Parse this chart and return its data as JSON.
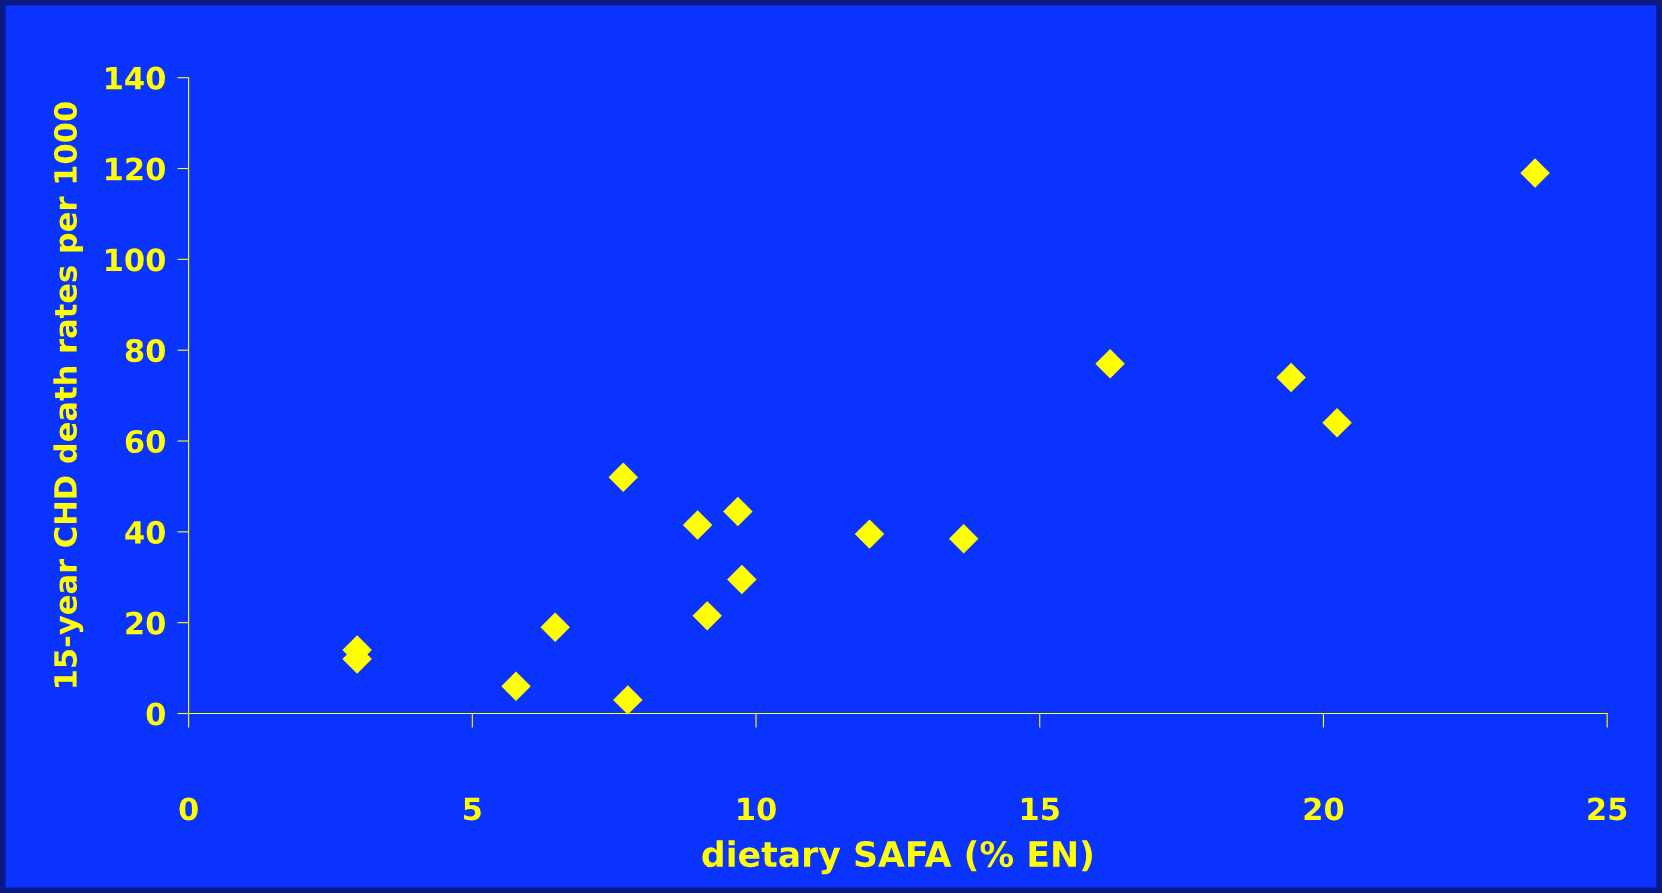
{
  "chart_data": {
    "type": "scatter",
    "xlabel": "dietary SAFA (% EN)",
    "ylabel": "15-year CHD death rates per 1000",
    "series": [
      {
        "color": "#ffff00",
        "x": [
          2.97,
          2.97,
          5.77,
          6.46,
          7.66,
          7.74,
          8.97,
          9.14,
          9.68,
          9.75,
          12.0,
          13.66,
          16.24,
          19.43,
          20.24,
          23.73
        ],
        "values": [
          14,
          12,
          6,
          19,
          52,
          3,
          41.5,
          21.5,
          44.5,
          29.5,
          39.5,
          38.5,
          77,
          74,
          64,
          119
        ]
      }
    ],
    "xlim": [
      0,
      25
    ],
    "xticks": [
      0,
      5,
      10,
      15,
      20,
      25
    ],
    "ylim": [
      0,
      140
    ],
    "yticks": [
      0,
      20,
      40,
      60,
      80,
      100,
      120,
      140
    ],
    "marker": "diamond",
    "grid": false,
    "legend": false
  }
}
